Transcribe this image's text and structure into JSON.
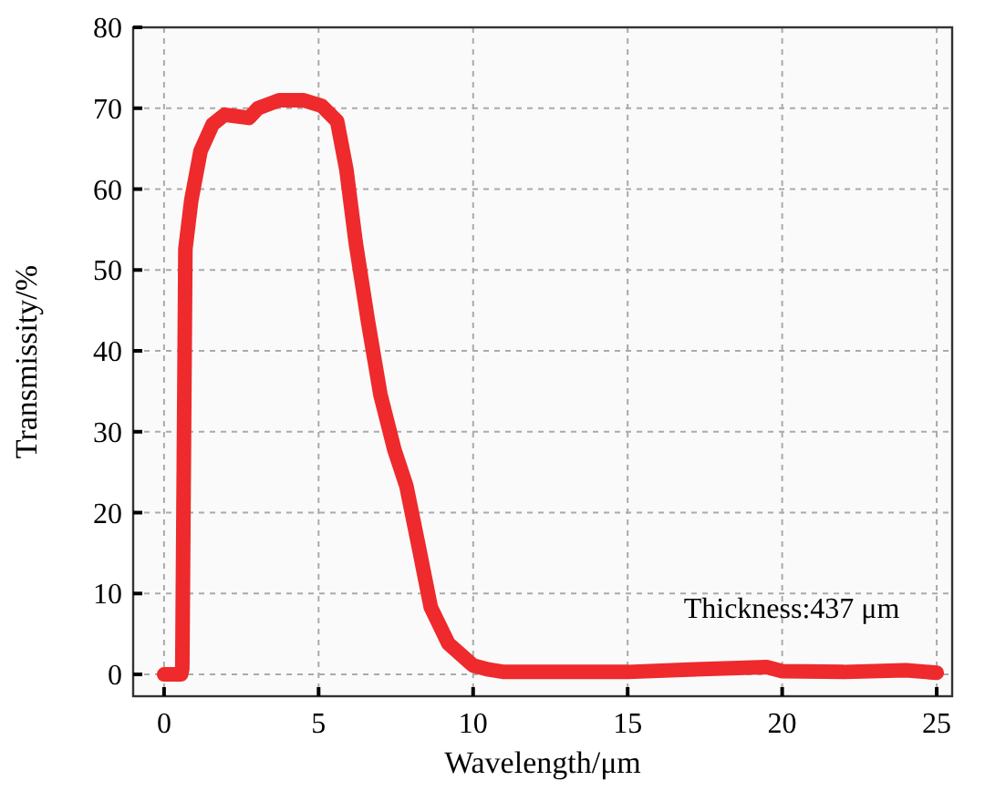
{
  "chart_data": {
    "type": "line",
    "xlabel": "Wavelength/μm",
    "ylabel": "Transmissity/%",
    "xlim": [
      -1,
      25.5
    ],
    "ylim": [
      -2.7,
      80
    ],
    "xticks": [
      0,
      5,
      10,
      15,
      20,
      25
    ],
    "yticks": [
      0,
      10,
      20,
      30,
      40,
      50,
      60,
      70,
      80
    ],
    "grid": true,
    "annotations": [
      "Thickness:437 μm"
    ],
    "series": [
      {
        "color": "#ee2a2c",
        "x": [
          0,
          0.55,
          0.59,
          0.69,
          0.88,
          1.18,
          1.57,
          1.96,
          2.75,
          3.04,
          3.73,
          4.5,
          5.1,
          5.6,
          5.9,
          6.2,
          6.6,
          7.0,
          7.45,
          7.84,
          8.24,
          8.63,
          9.2,
          10,
          10.5,
          11,
          13,
          15,
          17,
          19.5,
          20,
          22,
          24,
          25
        ],
        "values": [
          0,
          0,
          0.7,
          52.6,
          58.6,
          64.7,
          68,
          69.2,
          68.8,
          70,
          71,
          71,
          70.3,
          68.4,
          62.4,
          53.4,
          43.6,
          34.6,
          27.8,
          23.3,
          15.8,
          8.3,
          3.8,
          1.1,
          0.6,
          0.3,
          0.3,
          0.3,
          0.6,
          0.9,
          0.4,
          0.3,
          0.5,
          0.2
        ]
      }
    ]
  }
}
